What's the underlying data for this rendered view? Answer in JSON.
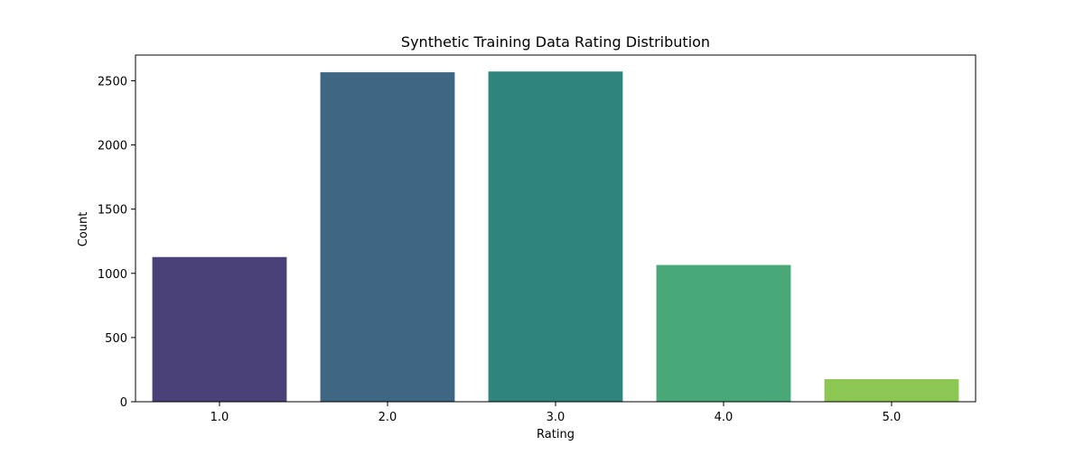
{
  "chart_data": {
    "type": "bar",
    "title": "Synthetic Training Data Rating Distribution",
    "xlabel": "Rating",
    "ylabel": "Count",
    "categories": [
      "1.0",
      "2.0",
      "3.0",
      "4.0",
      "5.0"
    ],
    "values": [
      1127,
      2566,
      2572,
      1065,
      176
    ],
    "ylim": [
      0,
      2700
    ],
    "yticks": [
      0,
      500,
      1000,
      1500,
      2000,
      2500
    ],
    "colors": [
      "#4a4178",
      "#3f6682",
      "#2e857e",
      "#48a877",
      "#8cc653"
    ],
    "grid": false,
    "legend": "none"
  }
}
